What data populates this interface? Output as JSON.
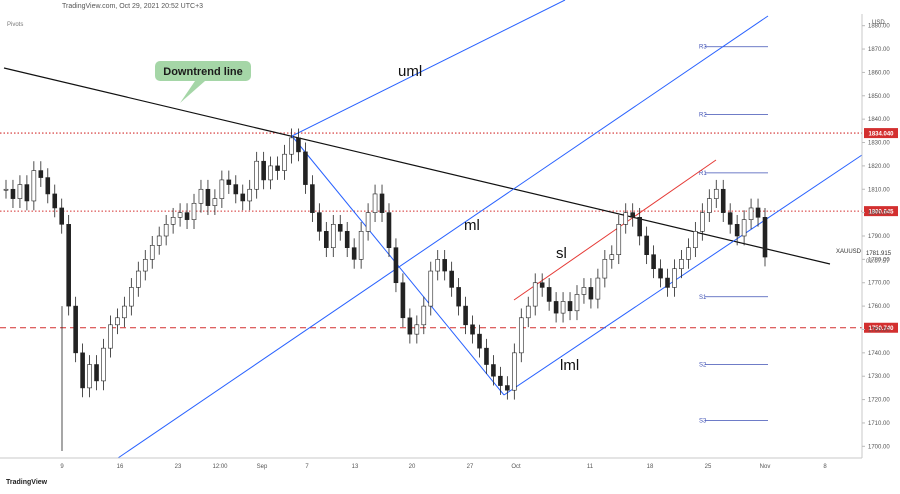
{
  "header": "TradingView.com, Oct 29, 2021 20:52 UTC+3",
  "indicator_label": "Pivots",
  "brand": "TradingView",
  "currency": "USD",
  "chart_data": {
    "type": "line",
    "title": "",
    "symbol": "XAUUSD",
    "last_price": "1781.915",
    "countdown": "03:07:57",
    "ylim": [
      1695,
      1885
    ],
    "y_ticks": [
      1700,
      1710,
      1720,
      1730,
      1740,
      1750,
      1760,
      1770,
      1780,
      1790,
      1800,
      1810,
      1820,
      1830,
      1840,
      1850,
      1860,
      1870,
      1880
    ],
    "x_tick_labels": [
      "9",
      "16",
      "23",
      "12:00",
      "Sep",
      "7",
      "13",
      "20",
      "27",
      "Oct",
      "11",
      "18",
      "25",
      "Nov",
      "8"
    ],
    "price_series": [
      1810,
      1806,
      1812,
      1805,
      1818,
      1815,
      1808,
      1802,
      1795,
      1760,
      1740,
      1725,
      1735,
      1728,
      1742,
      1752,
      1755,
      1760,
      1768,
      1775,
      1780,
      1786,
      1790,
      1795,
      1798,
      1800,
      1797,
      1804,
      1810,
      1803,
      1806,
      1814,
      1812,
      1808,
      1805,
      1810,
      1822,
      1814,
      1820,
      1818,
      1825,
      1832,
      1826,
      1812,
      1800,
      1792,
      1785,
      1795,
      1792,
      1785,
      1780,
      1792,
      1800,
      1808,
      1800,
      1785,
      1770,
      1755,
      1748,
      1752,
      1760,
      1775,
      1780,
      1775,
      1768,
      1760,
      1752,
      1748,
      1742,
      1735,
      1730,
      1726,
      1724,
      1740,
      1755,
      1760,
      1770,
      1768,
      1762,
      1757,
      1762,
      1758,
      1765,
      1768,
      1763,
      1772,
      1780,
      1782,
      1795,
      1800,
      1798,
      1790,
      1782,
      1776,
      1772,
      1768,
      1776,
      1780,
      1785,
      1792,
      1800,
      1806,
      1810,
      1800,
      1795,
      1790,
      1797,
      1802,
      1798,
      1781
    ],
    "horizontal_levels": [
      {
        "label": "1834.040",
        "value": 1834.04,
        "style": "dotted",
        "color": "#d32f2f"
      },
      {
        "label": "1800.645",
        "value": 1800.645,
        "style": "dotted",
        "color": "#d32f2f"
      },
      {
        "label": "1750.740",
        "value": 1750.74,
        "style": "dashed",
        "color": "#d32f2f"
      }
    ],
    "pivots": [
      {
        "label": "R3",
        "value": 1871
      },
      {
        "label": "R2",
        "value": 1842
      },
      {
        "label": "R1",
        "value": 1817
      },
      {
        "label": "S1",
        "value": 1764
      },
      {
        "label": "S2",
        "value": 1735
      },
      {
        "label": "S3",
        "value": 1711
      }
    ],
    "annotations": {
      "downtrend": "Downtrend line",
      "uml": "uml",
      "ml": "ml",
      "lml": "lml",
      "sl": "sl"
    }
  }
}
